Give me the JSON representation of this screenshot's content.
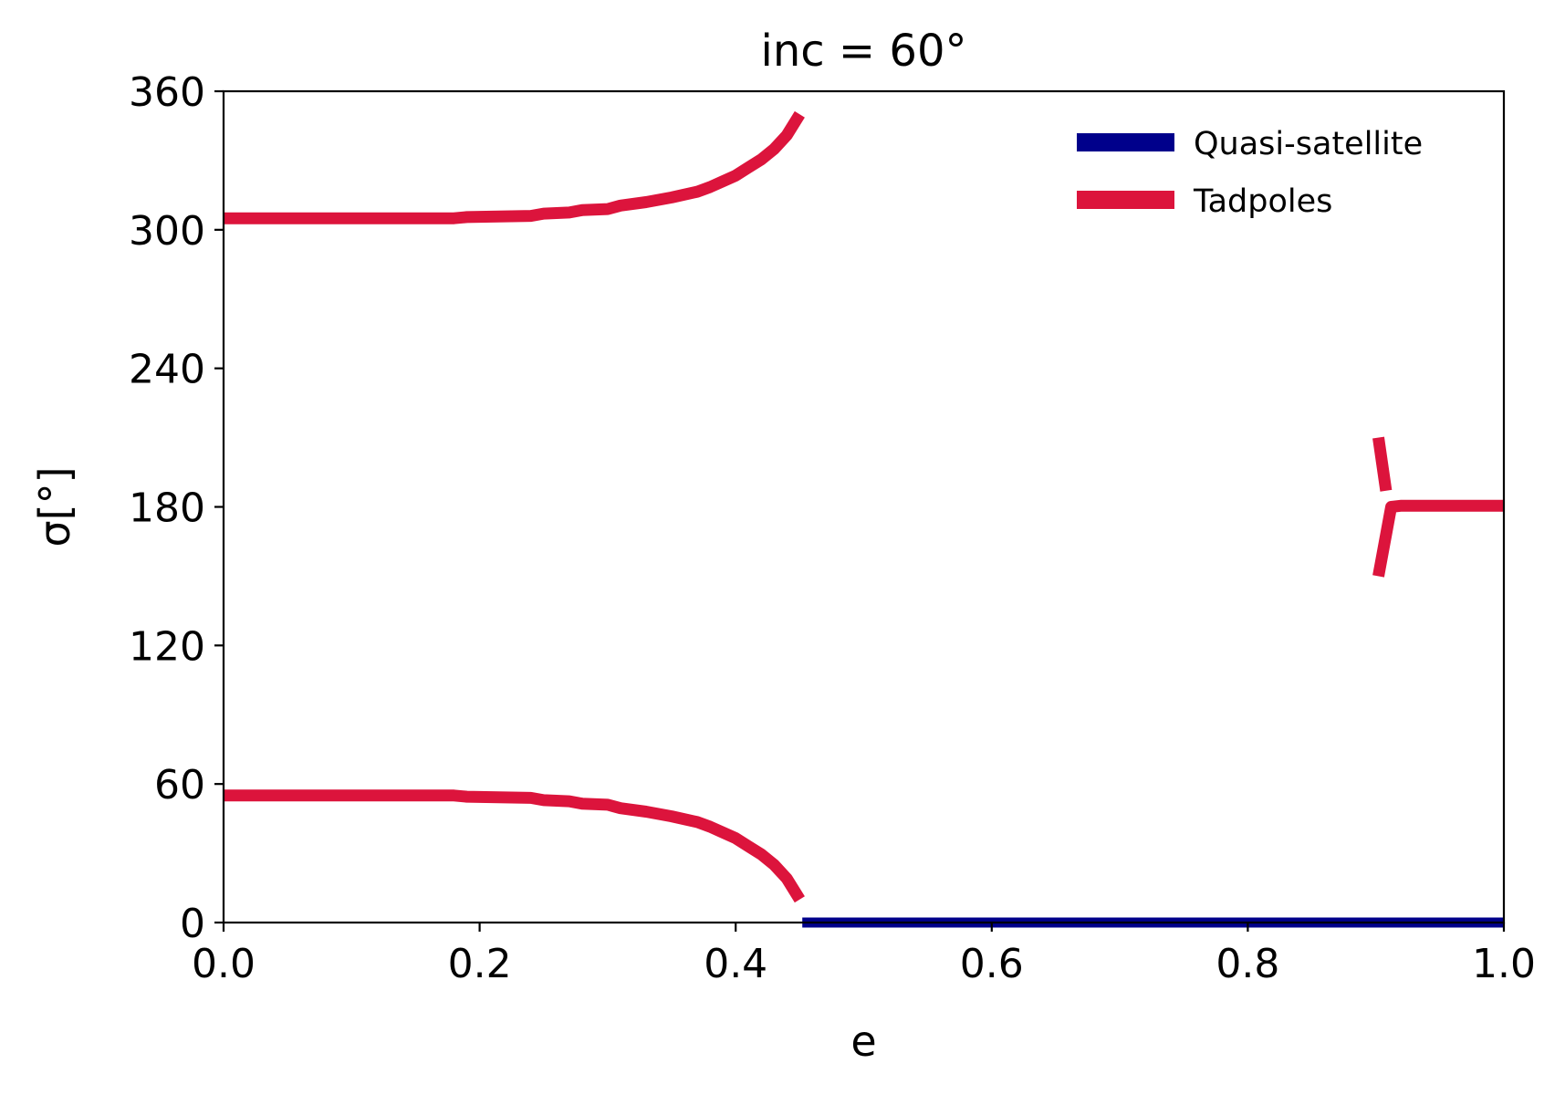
{
  "chart_data": {
    "type": "line",
    "title": "inc = 60°",
    "xlabel": "e",
    "ylabel": "σ[°]",
    "xlim": [
      0.0,
      1.0
    ],
    "ylim": [
      0,
      360
    ],
    "xticks": [
      "0.0",
      "0.2",
      "0.4",
      "0.6",
      "0.8",
      "1.0"
    ],
    "xtick_values": [
      0.0,
      0.2,
      0.4,
      0.6,
      0.8,
      1.0
    ],
    "yticks": [
      "0",
      "60",
      "120",
      "180",
      "240",
      "300",
      "360"
    ],
    "ytick_values": [
      0,
      60,
      120,
      180,
      240,
      300,
      360
    ],
    "grid": false,
    "legend_position": "top-right",
    "series": [
      {
        "name": "Quasi-satellite",
        "color": "#00008b",
        "segments": [
          [
            [
              0.452,
              0
            ],
            [
              0.6,
              0
            ],
            [
              0.8,
              0
            ],
            [
              1.0,
              0
            ]
          ]
        ]
      },
      {
        "name": "Tadpoles",
        "color": "#dc143c",
        "segments": [
          [
            [
              0.0,
              55
            ],
            [
              0.18,
              55
            ],
            [
              0.19,
              54.5
            ],
            [
              0.24,
              54
            ],
            [
              0.25,
              53
            ],
            [
              0.27,
              52.5
            ],
            [
              0.28,
              51.5
            ],
            [
              0.3,
              51
            ],
            [
              0.31,
              49.5
            ],
            [
              0.33,
              48
            ],
            [
              0.35,
              46
            ],
            [
              0.37,
              43.5
            ],
            [
              0.38,
              41.5
            ],
            [
              0.39,
              39
            ],
            [
              0.4,
              36.5
            ],
            [
              0.41,
              33
            ],
            [
              0.42,
              29.5
            ],
            [
              0.43,
              25
            ],
            [
              0.44,
              19
            ],
            [
              0.45,
              10
            ]
          ],
          [
            [
              0.0,
              305
            ],
            [
              0.18,
              305
            ],
            [
              0.19,
              305.5
            ],
            [
              0.24,
              306
            ],
            [
              0.25,
              307
            ],
            [
              0.27,
              307.5
            ],
            [
              0.28,
              308.5
            ],
            [
              0.3,
              309
            ],
            [
              0.31,
              310.5
            ],
            [
              0.33,
              312
            ],
            [
              0.35,
              314
            ],
            [
              0.37,
              316.5
            ],
            [
              0.38,
              318.5
            ],
            [
              0.39,
              321
            ],
            [
              0.4,
              323.5
            ],
            [
              0.41,
              327
            ],
            [
              0.42,
              330.5
            ],
            [
              0.43,
              335
            ],
            [
              0.44,
              341
            ],
            [
              0.45,
              350
            ]
          ],
          [
            [
              0.902,
              150
            ],
            [
              0.908,
              168
            ],
            [
              0.912,
              180
            ],
            [
              0.92,
              180.5
            ],
            [
              1.0,
              180.5
            ]
          ],
          [
            [
              0.902,
              210
            ],
            [
              0.908,
              187
            ]
          ]
        ]
      }
    ]
  }
}
